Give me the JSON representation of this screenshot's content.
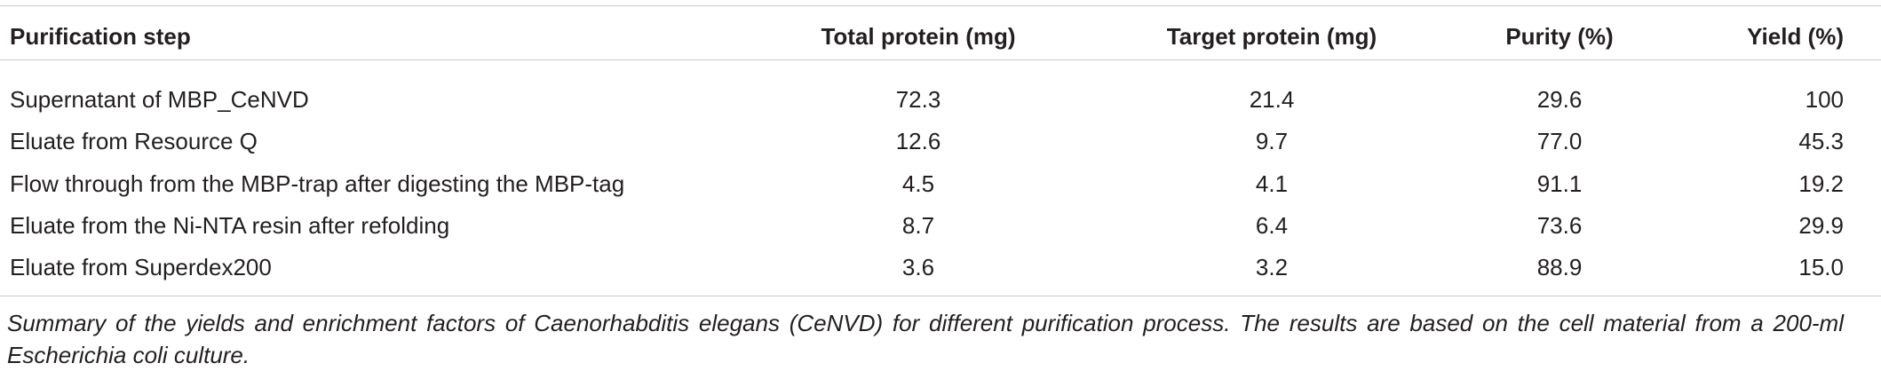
{
  "table": {
    "header": [
      "Purification step",
      "Total protein (mg)",
      "Target protein (mg)",
      "Purity (%)",
      "Yield (%)"
    ],
    "rows": [
      [
        "Supernatant of MBP_CeNVD",
        "72.3",
        "21.4",
        "29.6",
        "100"
      ],
      [
        "Eluate from Resource Q",
        "12.6",
        "9.7",
        "77.0",
        "45.3"
      ],
      [
        "Flow through from the MBP-trap after digesting the MBP-tag",
        "4.5",
        "4.1",
        "91.1",
        "19.2"
      ],
      [
        "Eluate from the Ni-NTA resin after refolding",
        "8.7",
        "6.4",
        "73.6",
        "29.9"
      ],
      [
        "Eluate from Superdex200",
        "3.6",
        "3.2",
        "88.9",
        "15.0"
      ]
    ],
    "caption": "Summary of the yields and enrichment factors of Caenorhabditis elegans (CeNVD) for different purification process. The results are based on the cell material from a 200-ml Escherichia coli culture."
  }
}
